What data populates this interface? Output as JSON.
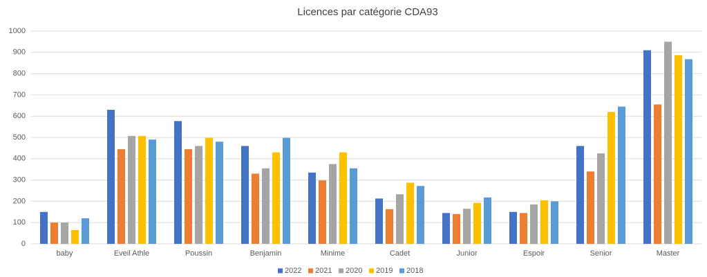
{
  "chart_data": {
    "type": "bar",
    "title": "Licences par catégorie CDA93",
    "categories": [
      "baby",
      "Eveil Athle",
      "Poussin",
      "Benjamin",
      "Minime",
      "Cadet",
      "Junior",
      "Espoir",
      "Senior",
      "Master"
    ],
    "series": [
      {
        "name": "2022",
        "color": "#4472c4",
        "values": [
          150,
          630,
          577,
          460,
          335,
          213,
          145,
          150,
          460,
          910
        ]
      },
      {
        "name": "2021",
        "color": "#ed7d31",
        "values": [
          100,
          445,
          445,
          330,
          298,
          163,
          140,
          145,
          340,
          655
        ]
      },
      {
        "name": "2020",
        "color": "#a5a5a5",
        "values": [
          100,
          507,
          460,
          355,
          375,
          233,
          165,
          185,
          425,
          950
        ]
      },
      {
        "name": "2019",
        "color": "#ffc000",
        "values": [
          65,
          507,
          498,
          430,
          430,
          287,
          193,
          205,
          620,
          887
        ]
      },
      {
        "name": "2018",
        "color": "#5b9bd5",
        "values": [
          120,
          490,
          480,
          498,
          355,
          272,
          218,
          200,
          645,
          868
        ]
      }
    ],
    "ylim": [
      0,
      1000
    ],
    "yticks": [
      0,
      100,
      200,
      300,
      400,
      500,
      600,
      700,
      800,
      900,
      1000
    ],
    "grid": true,
    "legend": "bottom"
  }
}
